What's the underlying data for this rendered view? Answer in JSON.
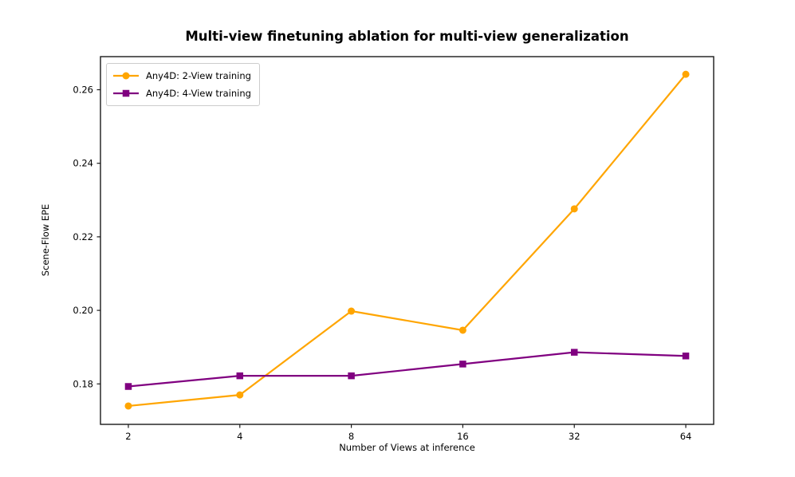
{
  "chart_data": {
    "type": "line",
    "title": "Multi-view finetuning ablation for multi-view generalization",
    "xlabel": "Number of Views at inference",
    "ylabel": "Scene-Flow EPE",
    "x": [
      2,
      4,
      8,
      16,
      32,
      64
    ],
    "xtick_labels": [
      "2",
      "4",
      "8",
      "16",
      "32",
      "64"
    ],
    "x_scale": "log2",
    "xlim_log2": [
      0.75,
      6.25
    ],
    "ylim": [
      0.169,
      0.269
    ],
    "yticks": [
      0.18,
      0.2,
      0.22,
      0.24,
      0.26
    ],
    "grid": false,
    "legend_position": "upper-left",
    "axis_color": "#1a1a1a",
    "series": [
      {
        "name": "Any4D: 2-View training",
        "color": "#FFA500",
        "marker": "circle",
        "values": [
          0.174,
          0.177,
          0.1998,
          0.1946,
          0.2276,
          0.2642
        ]
      },
      {
        "name": "Any4D: 4-View training",
        "color": "#800080",
        "marker": "square",
        "values": [
          0.1793,
          0.1822,
          0.1822,
          0.1854,
          0.1886,
          0.1876
        ]
      }
    ]
  }
}
